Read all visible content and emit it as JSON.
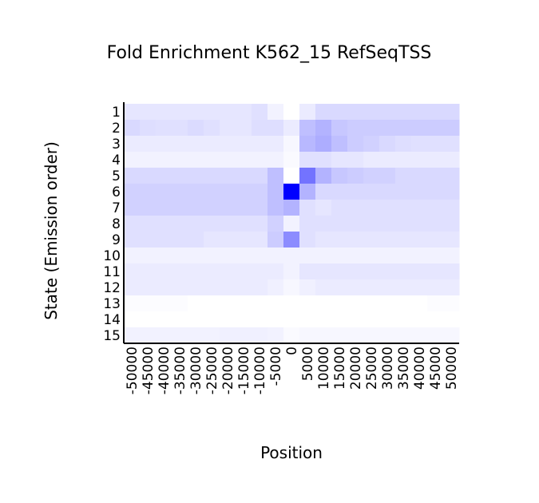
{
  "chart_data": {
    "type": "heatmap",
    "title": "Fold Enrichment K562_15 RefSeqTSS",
    "xlabel": "Position",
    "ylabel": "State (Emission order)",
    "x_ticks": [
      "-50000",
      "-45000",
      "-40000",
      "-35000",
      "-30000",
      "-25000",
      "-20000",
      "-15000",
      "-10000",
      "-5000",
      "0",
      "5000",
      "10000",
      "15000",
      "20000",
      "25000",
      "30000",
      "35000",
      "40000",
      "45000",
      "50000"
    ],
    "y_ticks": [
      "1",
      "2",
      "3",
      "4",
      "5",
      "6",
      "7",
      "8",
      "9",
      "10",
      "11",
      "12",
      "13",
      "14",
      "15"
    ],
    "color_low": "#ffffff",
    "color_high": "#0000ff",
    "values": [
      [
        0.1,
        0.1,
        0.1,
        0.1,
        0.1,
        0.1,
        0.1,
        0.1,
        0.12,
        0.05,
        0.0,
        0.08,
        0.15,
        0.15,
        0.15,
        0.15,
        0.15,
        0.15,
        0.15,
        0.15,
        0.15
      ],
      [
        0.15,
        0.13,
        0.12,
        0.12,
        0.14,
        0.12,
        0.1,
        0.1,
        0.13,
        0.13,
        0.08,
        0.25,
        0.3,
        0.22,
        0.2,
        0.2,
        0.2,
        0.2,
        0.2,
        0.2,
        0.2
      ],
      [
        0.08,
        0.08,
        0.08,
        0.08,
        0.08,
        0.08,
        0.08,
        0.08,
        0.08,
        0.08,
        0.03,
        0.28,
        0.32,
        0.25,
        0.2,
        0.18,
        0.15,
        0.13,
        0.12,
        0.12,
        0.12
      ],
      [
        0.05,
        0.05,
        0.05,
        0.05,
        0.05,
        0.05,
        0.05,
        0.05,
        0.05,
        0.05,
        0.02,
        0.12,
        0.12,
        0.1,
        0.1,
        0.08,
        0.08,
        0.08,
        0.08,
        0.08,
        0.08
      ],
      [
        0.15,
        0.15,
        0.15,
        0.15,
        0.15,
        0.15,
        0.15,
        0.15,
        0.15,
        0.25,
        0.0,
        0.55,
        0.3,
        0.22,
        0.2,
        0.18,
        0.18,
        0.15,
        0.15,
        0.15,
        0.15
      ],
      [
        0.18,
        0.18,
        0.18,
        0.18,
        0.18,
        0.18,
        0.18,
        0.18,
        0.18,
        0.25,
        1.0,
        0.3,
        0.15,
        0.15,
        0.15,
        0.15,
        0.15,
        0.15,
        0.15,
        0.15,
        0.15
      ],
      [
        0.18,
        0.18,
        0.18,
        0.18,
        0.18,
        0.18,
        0.18,
        0.18,
        0.18,
        0.25,
        0.3,
        0.12,
        0.1,
        0.12,
        0.12,
        0.12,
        0.12,
        0.12,
        0.12,
        0.12,
        0.12
      ],
      [
        0.12,
        0.12,
        0.12,
        0.12,
        0.12,
        0.12,
        0.12,
        0.12,
        0.12,
        0.18,
        0.05,
        0.12,
        0.12,
        0.12,
        0.12,
        0.12,
        0.12,
        0.12,
        0.12,
        0.12,
        0.12
      ],
      [
        0.12,
        0.12,
        0.12,
        0.12,
        0.12,
        0.1,
        0.1,
        0.1,
        0.1,
        0.2,
        0.45,
        0.12,
        0.1,
        0.1,
        0.1,
        0.1,
        0.1,
        0.1,
        0.1,
        0.1,
        0.1
      ],
      [
        0.05,
        0.05,
        0.05,
        0.05,
        0.05,
        0.05,
        0.05,
        0.05,
        0.05,
        0.05,
        0.05,
        0.05,
        0.05,
        0.05,
        0.05,
        0.05,
        0.05,
        0.05,
        0.05,
        0.05,
        0.05
      ],
      [
        0.08,
        0.08,
        0.08,
        0.08,
        0.08,
        0.08,
        0.08,
        0.08,
        0.08,
        0.08,
        0.05,
        0.1,
        0.1,
        0.1,
        0.1,
        0.1,
        0.1,
        0.1,
        0.1,
        0.1,
        0.1
      ],
      [
        0.08,
        0.08,
        0.08,
        0.08,
        0.08,
        0.08,
        0.08,
        0.08,
        0.08,
        0.06,
        0.03,
        0.06,
        0.08,
        0.08,
        0.08,
        0.08,
        0.08,
        0.08,
        0.08,
        0.08,
        0.08
      ],
      [
        0.01,
        0.01,
        0.01,
        0.01,
        0.0,
        0.0,
        0.0,
        0.0,
        0.0,
        0.0,
        0.0,
        0.0,
        0.0,
        0.0,
        0.0,
        0.0,
        0.0,
        0.0,
        0.0,
        0.01,
        0.01
      ],
      [
        0.0,
        0.0,
        0.0,
        0.0,
        0.0,
        0.0,
        0.0,
        0.0,
        0.0,
        0.0,
        0.0,
        0.0,
        0.0,
        0.0,
        0.0,
        0.0,
        0.0,
        0.0,
        0.0,
        0.0,
        0.0
      ],
      [
        0.05,
        0.05,
        0.05,
        0.05,
        0.05,
        0.05,
        0.06,
        0.06,
        0.06,
        0.05,
        0.02,
        0.03,
        0.03,
        0.03,
        0.03,
        0.03,
        0.03,
        0.03,
        0.03,
        0.03,
        0.03
      ]
    ]
  }
}
